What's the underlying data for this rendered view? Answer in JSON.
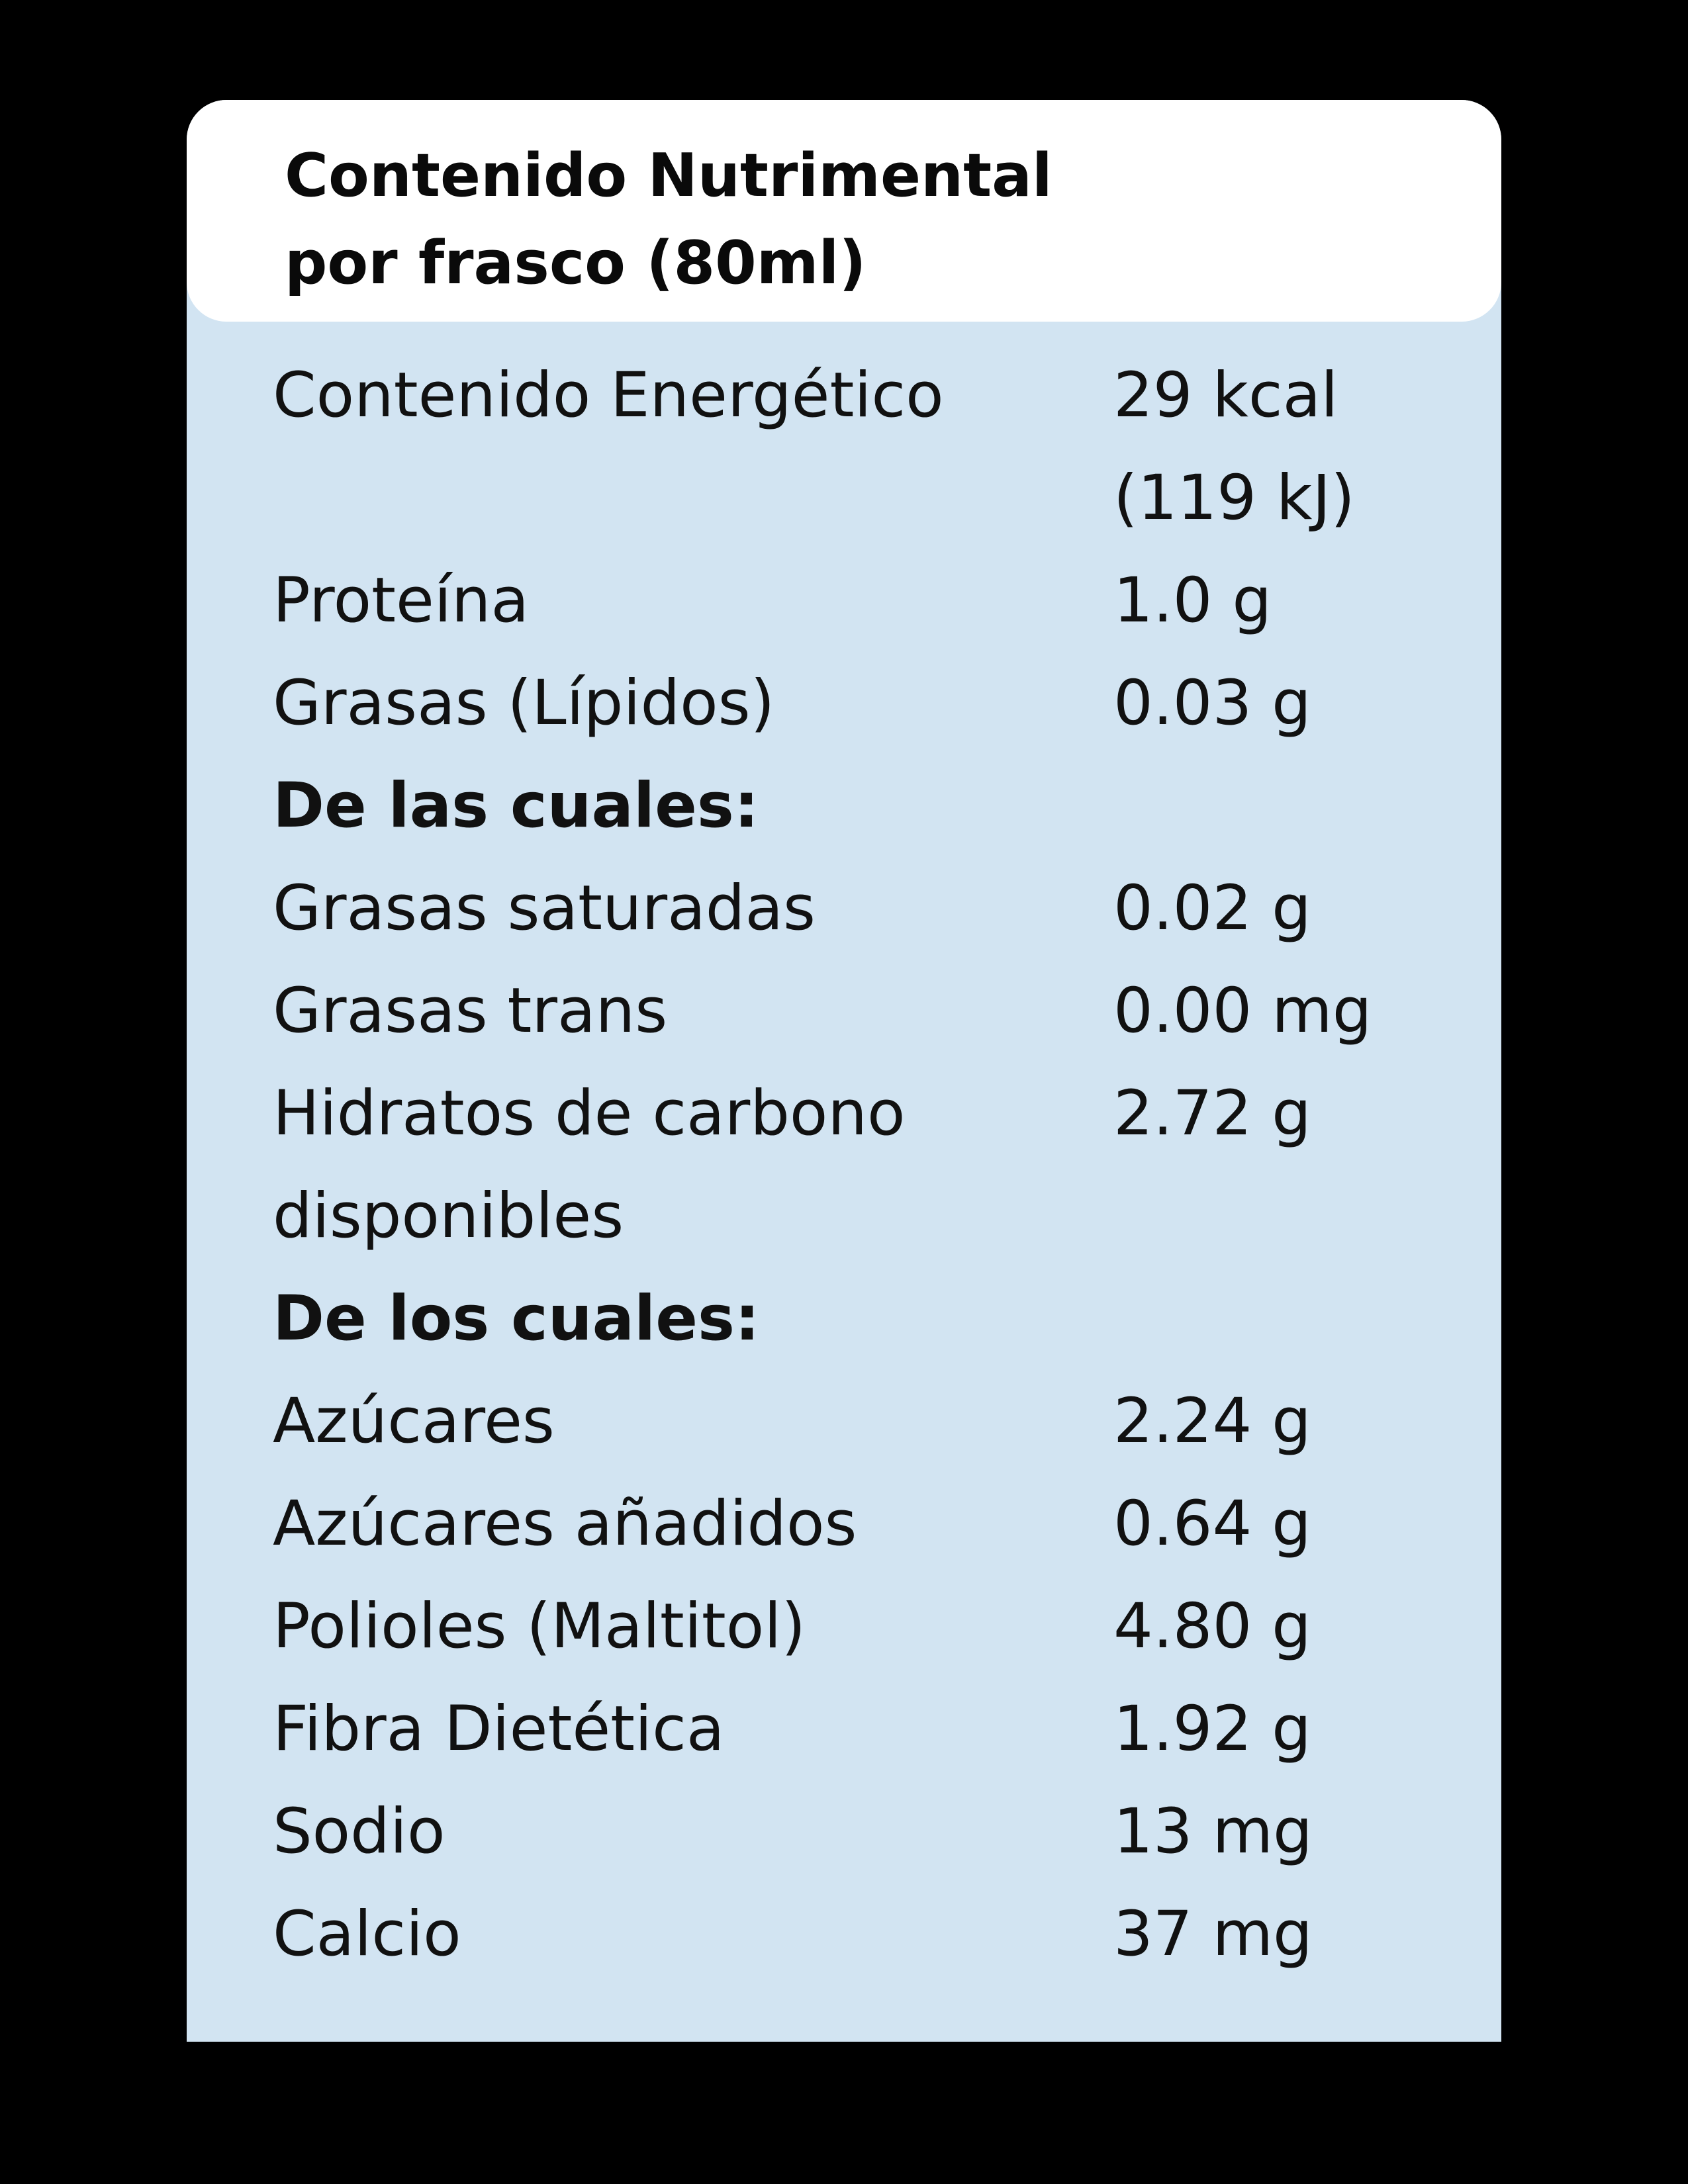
{
  "header": {
    "title_line1": "Contenido Nutrimental",
    "title_line2": "por frasco (80ml)"
  },
  "colors": {
    "background": "#000000",
    "header_bg": "#ffffff",
    "panel_bg": "#d2e4f2",
    "text": "#111111"
  },
  "rows": [
    {
      "label": "Contenido Energético",
      "value": "29 kcal",
      "bold": false
    },
    {
      "label": "",
      "value": "(119 kJ)",
      "bold": false
    },
    {
      "label": "Proteína",
      "value": "1.0 g",
      "bold": false
    },
    {
      "label": "Grasas (Lípidos)",
      "value": "0.03 g",
      "bold": false
    },
    {
      "label": "De las cuales:",
      "value": "",
      "bold": true
    },
    {
      "label": "Grasas saturadas",
      "value": "0.02 g",
      "bold": false
    },
    {
      "label": "Grasas trans",
      "value": "0.00 mg",
      "bold": false
    },
    {
      "label": "Hidratos de carbono",
      "value": "2.72 g",
      "bold": false
    },
    {
      "label": "disponibles",
      "value": "",
      "bold": false
    },
    {
      "label": "De los cuales:",
      "value": "",
      "bold": true
    },
    {
      "label": "Azúcares",
      "value": "2.24 g",
      "bold": false
    },
    {
      "label": "Azúcares añadidos",
      "value": "0.64 g",
      "bold": false
    },
    {
      "label": "Polioles (Maltitol)",
      "value": "4.80 g",
      "bold": false
    },
    {
      "label": "Fibra Dietética",
      "value": "1.92 g",
      "bold": false
    },
    {
      "label": "Sodio",
      "value": "13 mg",
      "bold": false
    },
    {
      "label": "Calcio",
      "value": "37 mg",
      "bold": false
    }
  ]
}
